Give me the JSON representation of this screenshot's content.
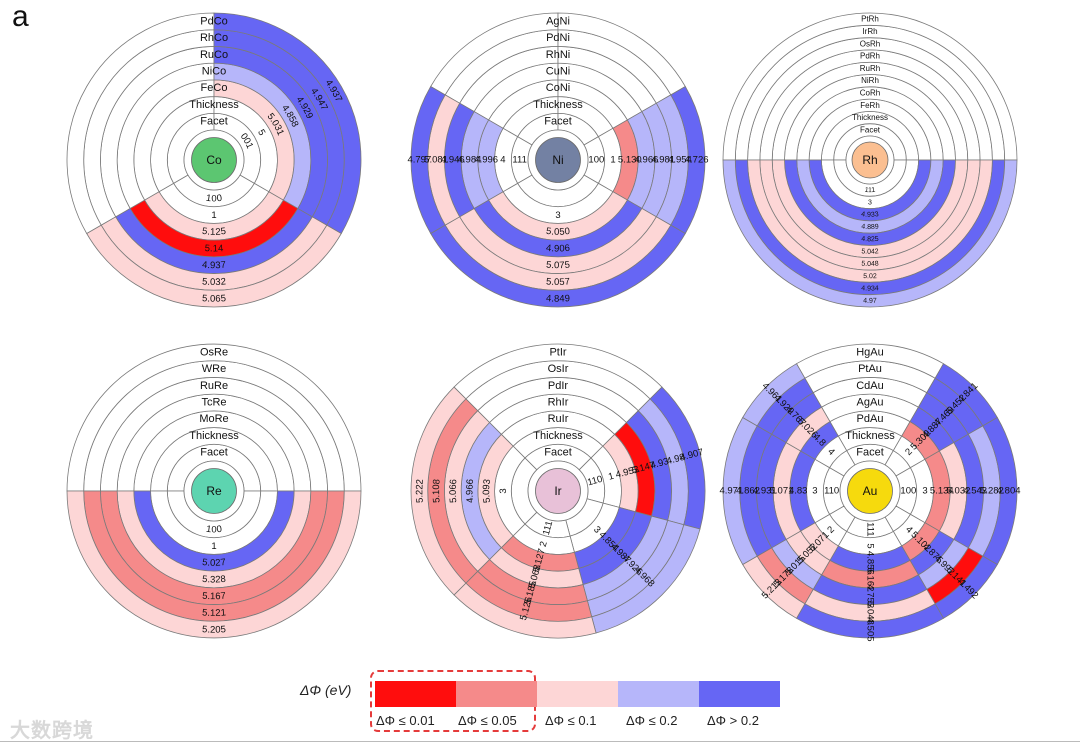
{
  "panel_label": "a",
  "colors": {
    "r01": "#ff0d0d",
    "r05": "#f58a8a",
    "r1": "#fdd6d6",
    "b2": "#b6b6fa",
    "b3": "#6666f4",
    "none": "#ffffff"
  },
  "legend": {
    "title": "ΔΦ (eV)",
    "items": [
      {
        "color_key": "r01",
        "label": "ΔΦ ≤ 0.01"
      },
      {
        "color_key": "r05",
        "label": "ΔΦ ≤ 0.05"
      },
      {
        "color_key": "r1",
        "label": "ΔΦ ≤ 0.1"
      },
      {
        "color_key": "b2",
        "label": "ΔΦ ≤ 0.2"
      },
      {
        "color_key": "b3",
        "label": "ΔΦ > 0.2"
      }
    ]
  },
  "watermark": "大数跨境",
  "chart_data": [
    {
      "type": "sunburst",
      "element": "Co",
      "center_color": "#5cc671",
      "ring_labels": [
        "Facet",
        "Thickness",
        "FeCo",
        "NiCo",
        "RuCo",
        "RhCo",
        "PdCo"
      ],
      "sectors": [
        {
          "start": 120,
          "end": 240,
          "facet": "100",
          "thickness": "1",
          "values": [
            "5.125",
            "5.14",
            "4.937",
            "5.032",
            "5.065"
          ],
          "colors": [
            "r1",
            "r01",
            "b3",
            "r1",
            "r1"
          ]
        },
        {
          "start": 240,
          "end": 360,
          "facet": "",
          "thickness": "",
          "values": [
            "",
            "",
            "",
            "",
            ""
          ],
          "colors": [
            "none",
            "none",
            "none",
            "none",
            "none"
          ]
        },
        {
          "start": 0,
          "end": 120,
          "facet": "001",
          "thickness": "5",
          "values": [
            "5.031",
            "4.858",
            "4.929",
            "4.947",
            "4.937"
          ],
          "colors": [
            "r1",
            "b2",
            "b3",
            "b3",
            "b3"
          ]
        }
      ]
    },
    {
      "type": "sunburst",
      "element": "Ni",
      "center_color": "#7381a3",
      "ring_labels": [
        "Facet",
        "Thickness",
        "CoNi",
        "CuNi",
        "RhNi",
        "PdNi",
        "AgNi"
      ],
      "sectors": [
        {
          "start": 300,
          "end": 360,
          "facet": "",
          "thickness": "",
          "values": [
            "",
            "",
            "",
            "",
            ""
          ],
          "colors": [
            "none",
            "none",
            "none",
            "none",
            "none"
          ]
        },
        {
          "start": 0,
          "end": 60,
          "facet": "",
          "thickness": "",
          "values": [
            "",
            "",
            "",
            "",
            ""
          ],
          "colors": [
            "none",
            "none",
            "none",
            "none",
            "none"
          ]
        },
        {
          "start": 60,
          "end": 120,
          "facet": "100",
          "thickness": "1",
          "values": [
            "5.130",
            "4.966",
            "4.981",
            "4.954",
            "4.726"
          ],
          "colors": [
            "r05",
            "b2",
            "b2",
            "b2",
            "b3"
          ]
        },
        {
          "start": 120,
          "end": 240,
          "facet": "",
          "thickness": "3",
          "values": [
            "5.050",
            "4.906",
            "5.075",
            "5.057",
            "4.849"
          ],
          "colors": [
            "r1",
            "b3",
            "r1",
            "r1",
            "b3"
          ]
        },
        {
          "start": 240,
          "end": 300,
          "facet": "111",
          "thickness": "4",
          "values": [
            "4.996",
            "4.984",
            "4.946",
            "5.081",
            "4.797"
          ],
          "colors": [
            "b2",
            "b2",
            "b3",
            "r1",
            "b3"
          ]
        }
      ]
    },
    {
      "type": "sunburst",
      "element": "Rh",
      "center_color": "#fbbf91",
      "ring_labels": [
        "Facet",
        "Thickness",
        "FeRh",
        "CoRh",
        "NiRh",
        "RuRh",
        "PdRh",
        "OsRh",
        "IrRh",
        "PtRh"
      ],
      "sectors": [
        {
          "start": 270,
          "end": 450,
          "facet": "",
          "thickness": "",
          "values": [
            "",
            "",
            "",
            "",
            "",
            "",
            "",
            ""
          ],
          "colors": [
            "none",
            "none",
            "none",
            "none",
            "none",
            "none",
            "none",
            "none"
          ]
        },
        {
          "start": 90,
          "end": 270,
          "facet": "111",
          "thickness": "3",
          "values": [
            "4.933",
            "4.889",
            "4.825",
            "5.042",
            "5.048",
            "5.02",
            "4.934",
            "4.97"
          ],
          "colors": [
            "b3",
            "b2",
            "b3",
            "r1",
            "r1",
            "r1",
            "b3",
            "b2"
          ]
        }
      ]
    },
    {
      "type": "sunburst",
      "element": "Re",
      "center_color": "#5dd4b0",
      "ring_labels": [
        "Facet",
        "Thickness",
        "MoRe",
        "TcRe",
        "RuRe",
        "WRe",
        "OsRe"
      ],
      "sectors": [
        {
          "start": 270,
          "end": 450,
          "facet": "",
          "thickness": "",
          "values": [
            "",
            "",
            "",
            "",
            ""
          ],
          "colors": [
            "none",
            "none",
            "none",
            "none",
            "none"
          ]
        },
        {
          "start": 90,
          "end": 270,
          "facet": "100",
          "thickness": "1",
          "values": [
            "5.027",
            "5.328",
            "5.167",
            "5.121",
            "5.205"
          ],
          "colors": [
            "b3",
            "r1",
            "r05",
            "r05",
            "r1"
          ]
        }
      ]
    },
    {
      "type": "sunburst",
      "element": "Ir",
      "center_color": "#e8c1d8",
      "ring_labels": [
        "Facet",
        "Thickness",
        "RuIr",
        "RhIr",
        "PdIr",
        "OsIr",
        "PtIr"
      ],
      "sectors": [
        {
          "start": 315,
          "end": 405,
          "facet": "",
          "thickness": "",
          "values": [
            "",
            "",
            "",
            "",
            ""
          ],
          "colors": [
            "none",
            "none",
            "none",
            "none",
            "none"
          ]
        },
        {
          "start": 45,
          "end": 105,
          "facet": "110",
          "thickness": "1",
          "values": [
            "4.953",
            "5.147",
            "4.93",
            "4.98",
            "4.907"
          ],
          "colors": [
            "r1",
            "r01",
            "b3",
            "b2",
            "b3"
          ]
        },
        {
          "start": 105,
          "end": 165,
          "facet": "",
          "thickness": "3",
          "values": [
            "4.854",
            "4.987",
            "4.926",
            "4.968",
            ""
          ],
          "colors": [
            "b3",
            "b3",
            "b2",
            "b2",
            "b2"
          ]
        },
        {
          "start": 165,
          "end": 225,
          "facet": "111",
          "thickness": "2",
          "values": [
            "5.127",
            "5.068",
            "5.185",
            "5.126",
            ""
          ],
          "colors": [
            "r05",
            "r1",
            "r05",
            "r05",
            "r1"
          ]
        },
        {
          "start": 225,
          "end": 315,
          "facet": "",
          "thickness": "3",
          "values": [
            "5.093",
            "4.966",
            "5.066",
            "5.108",
            "5.222"
          ],
          "colors": [
            "r1",
            "b2",
            "r1",
            "r05",
            "r1"
          ]
        }
      ]
    },
    {
      "type": "sunburst",
      "element": "Au",
      "center_color": "#f6da0d",
      "ring_labels": [
        "Facet",
        "Thickness",
        "PdAu",
        "AgAu",
        "CdAu",
        "PtAu",
        "HgAu"
      ],
      "sectors": [
        {
          "start": 330,
          "end": 390,
          "facet": "",
          "thickness": "",
          "values": [
            "",
            "",
            "",
            "",
            ""
          ],
          "colors": [
            "none",
            "none",
            "none",
            "none",
            "none"
          ]
        },
        {
          "start": 30,
          "end": 60,
          "facet": "",
          "thickness": "2",
          "values": [
            "5.309",
            "4.887",
            "4.469",
            "5.452",
            "4.841"
          ],
          "colors": [
            "r05",
            "b3",
            "b3",
            "b3",
            "b3"
          ]
        },
        {
          "start": 60,
          "end": 120,
          "facet": "100",
          "thickness": "3",
          "values": [
            "5.134",
            "5.032",
            "4.543",
            "5.282",
            "4.804"
          ],
          "colors": [
            "r05",
            "r1",
            "b3",
            "b2",
            "b3"
          ]
        },
        {
          "start": 120,
          "end": 150,
          "facet": "",
          "thickness": "4",
          "values": [
            "5.102",
            "4.875",
            "4.992",
            "5.141",
            "4.492"
          ],
          "colors": [
            "r05",
            "b3",
            "b2",
            "r01",
            "b3"
          ]
        },
        {
          "start": 150,
          "end": 210,
          "facet": "111",
          "thickness": "5",
          "values": [
            "4.856",
            "5.162",
            "4.753",
            "5.048",
            "4.505"
          ],
          "colors": [
            "b3",
            "r05",
            "b3",
            "r1",
            "b3"
          ]
        },
        {
          "start": 210,
          "end": 240,
          "facet": "",
          "thickness": "2",
          "values": [
            "5.071",
            "5.052",
            "5.015",
            "5.178",
            "5.213"
          ],
          "colors": [
            "r1",
            "r1",
            "b2",
            "r05",
            "r1"
          ]
        },
        {
          "start": 240,
          "end": 300,
          "facet": "110",
          "thickness": "3",
          "values": [
            "4.83",
            "5.071",
            "4.931",
            "4.862",
            "4.971"
          ],
          "colors": [
            "b3",
            "r1",
            "b3",
            "b3",
            "b2"
          ]
        },
        {
          "start": 300,
          "end": 330,
          "facet": "",
          "thickness": "4",
          "values": [
            "4.8",
            "5.026",
            "4.767",
            "4.929",
            "4.961"
          ],
          "colors": [
            "b3",
            "r1",
            "b3",
            "b3",
            "b2"
          ]
        }
      ]
    }
  ]
}
